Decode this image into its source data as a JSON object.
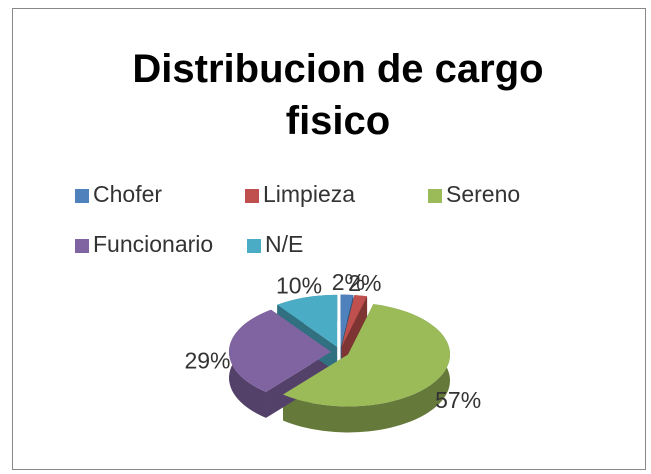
{
  "chart_data": {
    "type": "pie",
    "title": "Distribucion de cargo fisico",
    "categories": [
      "Chofer",
      "Limpieza",
      "Sereno",
      "Funcionario",
      "N/E"
    ],
    "values": [
      2,
      2,
      57,
      29,
      10
    ],
    "value_labels": [
      "2%",
      "2%",
      "57%",
      "29%",
      "10%"
    ],
    "colors": [
      "#4f81bd",
      "#c0504d",
      "#9bbb59",
      "#8064a2",
      "#4bacc6"
    ]
  }
}
